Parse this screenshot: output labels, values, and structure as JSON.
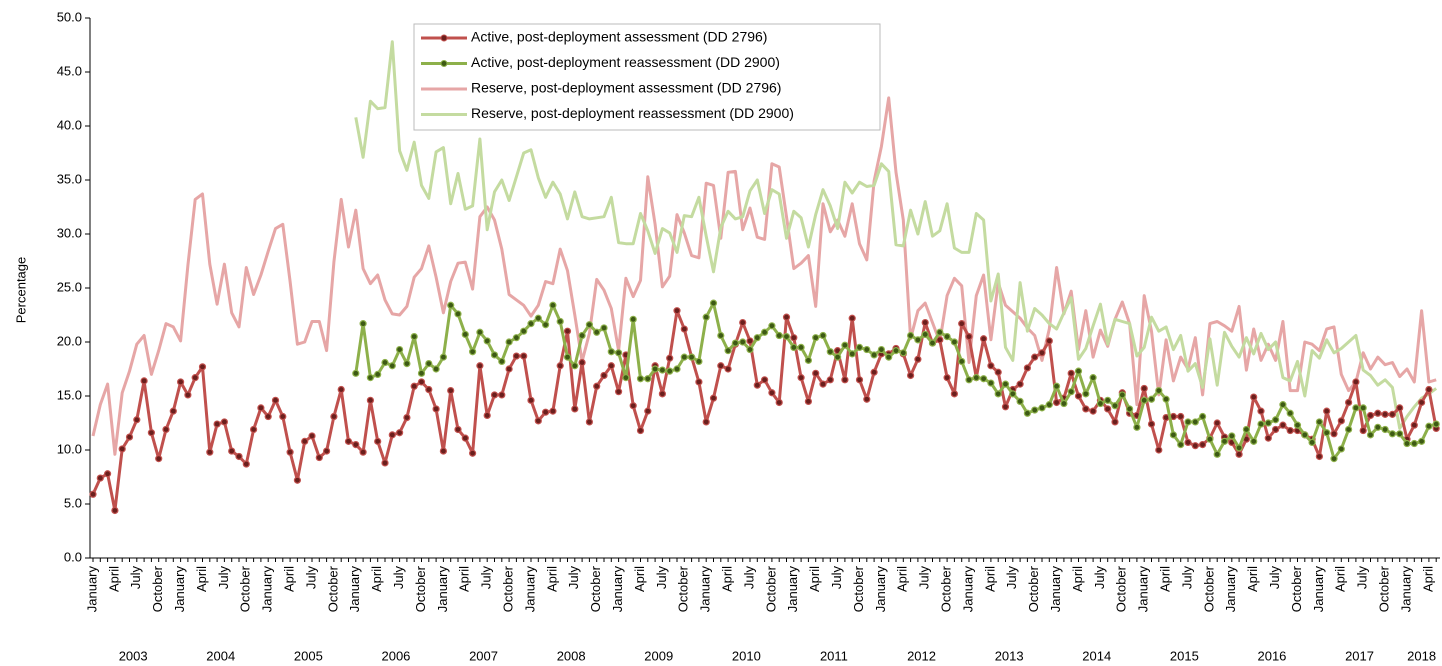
{
  "chart_data": {
    "type": "line",
    "y_axis_label": "Percentage",
    "ylim": [
      0,
      50
    ],
    "yticks": [
      {
        "value": 0,
        "label": "0.0"
      },
      {
        "value": 5,
        "label": "5.0"
      },
      {
        "value": 10,
        "label": "10.0"
      },
      {
        "value": 15,
        "label": "15.0"
      },
      {
        "value": 20,
        "label": "20.0"
      },
      {
        "value": 25,
        "label": "25.0"
      },
      {
        "value": 30,
        "label": "30.0"
      },
      {
        "value": 35,
        "label": "35.0"
      },
      {
        "value": 40,
        "label": "40.0"
      },
      {
        "value": 45,
        "label": "45.0"
      },
      {
        "value": 50,
        "label": "50.0"
      }
    ],
    "categories": [
      "January",
      null,
      null,
      "April",
      null,
      null,
      "July",
      null,
      null,
      "October",
      null,
      null,
      "January",
      null,
      null,
      "April",
      null,
      null,
      "July",
      null,
      null,
      "October",
      null,
      null,
      "January",
      null,
      null,
      "April",
      null,
      null,
      "July",
      null,
      null,
      "October",
      null,
      null,
      "January",
      null,
      null,
      "April",
      null,
      null,
      "July",
      null,
      null,
      "October",
      null,
      null,
      "January",
      null,
      null,
      "April",
      null,
      null,
      "July",
      null,
      null,
      "October",
      null,
      null,
      "January",
      null,
      null,
      "April",
      null,
      null,
      "July",
      null,
      null,
      "October",
      null,
      null,
      "January",
      null,
      null,
      "April",
      null,
      null,
      "July",
      null,
      null,
      "October",
      null,
      null,
      "January",
      null,
      null,
      "April",
      null,
      null,
      "July",
      null,
      null,
      "October",
      null,
      null,
      "January",
      null,
      null,
      "April",
      null,
      null,
      "July",
      null,
      null,
      "October",
      null,
      null,
      "January",
      null,
      null,
      "April",
      null,
      null,
      "July",
      null,
      null,
      "October",
      null,
      null,
      "January",
      null,
      null,
      "April",
      null,
      null,
      "July",
      null,
      null,
      "October",
      null,
      null,
      "January",
      null,
      null,
      "April",
      null,
      null,
      "July",
      null,
      null,
      "October",
      null,
      null,
      "January",
      null,
      null,
      "April",
      null,
      null,
      "July",
      null,
      null,
      "October",
      null,
      null,
      "January",
      null,
      null,
      "April",
      null,
      null,
      "July",
      null,
      null,
      "October",
      null,
      null,
      "January",
      null,
      null,
      "April",
      null,
      null,
      "July",
      null,
      null,
      "October",
      null,
      null,
      "January",
      null,
      null,
      "April",
      null
    ],
    "year_labels": [
      "2003",
      "2004",
      "2005",
      "2006",
      "2007",
      "2008",
      "2009",
      "2010",
      "2011",
      "2012",
      "2013",
      "2014",
      "2015",
      "2016",
      "2017",
      "2018"
    ],
    "series": [
      {
        "name": "Active, post-deployment assessment (DD 2796)",
        "color": "#c0504d",
        "marker_color": "#6b1f1d",
        "marker": true,
        "width": 3,
        "values": [
          5.9,
          7.4,
          7.8,
          4.4,
          10.1,
          11.2,
          12.8,
          16.4,
          11.6,
          9.2,
          11.9,
          13.6,
          16.3,
          15.1,
          16.7,
          17.7,
          9.8,
          12.4,
          12.6,
          9.9,
          9.4,
          8.7,
          11.9,
          13.9,
          13.1,
          14.6,
          13.1,
          9.8,
          7.2,
          10.8,
          11.3,
          9.3,
          9.9,
          13.1,
          15.6,
          10.8,
          10.5,
          9.8,
          14.6,
          10.8,
          8.8,
          11.4,
          11.6,
          13.0,
          15.9,
          16.3,
          15.6,
          13.8,
          9.9,
          15.5,
          11.9,
          11.1,
          9.7,
          17.8,
          13.2,
          15.1,
          15.1,
          17.5,
          18.7,
          18.7,
          14.6,
          12.7,
          13.5,
          13.6,
          17.8,
          21.0,
          13.8,
          18.1,
          12.6,
          15.9,
          16.9,
          17.8,
          15.4,
          18.8,
          14.1,
          11.8,
          13.6,
          17.8,
          15.2,
          18.5,
          22.9,
          21.2,
          18.6,
          16.3,
          12.6,
          14.8,
          17.8,
          17.5,
          19.8,
          21.8,
          20.1,
          16.0,
          16.5,
          15.3,
          14.4,
          22.3,
          20.4,
          16.7,
          14.5,
          17.1,
          16.1,
          16.5,
          19.2,
          16.5,
          22.2,
          16.5,
          14.7,
          17.2,
          18.9,
          18.9,
          19.4,
          18.9,
          16.9,
          18.4,
          21.8,
          19.9,
          20.2,
          16.7,
          15.2,
          21.7,
          20.5,
          16.7,
          20.3,
          17.8,
          17.2,
          14.0,
          15.6,
          16.1,
          17.6,
          18.6,
          19.0,
          20.1,
          14.4,
          14.8,
          17.1,
          15.0,
          13.8,
          13.6,
          14.6,
          13.8,
          12.6,
          15.3,
          13.4,
          13.2,
          15.7,
          12.4,
          10.0,
          13.0,
          13.1,
          13.1,
          10.7,
          10.4,
          10.5,
          11.1,
          12.5,
          11.2,
          10.7,
          9.6,
          11.0,
          14.9,
          13.6,
          11.1,
          11.9,
          12.3,
          11.8,
          11.8,
          11.4,
          11.0,
          9.4,
          13.6,
          11.5,
          12.7,
          14.4,
          16.3,
          11.8,
          13.2,
          13.4,
          13.3,
          13.3,
          13.9,
          11.0,
          12.3,
          14.4,
          15.6,
          12.0
        ]
      },
      {
        "name": "Active, post-deployment reassessment (DD 2900)",
        "color": "#8db04a",
        "marker_color": "#3d5a14",
        "marker": true,
        "width": 3,
        "values": [
          null,
          null,
          null,
          null,
          null,
          null,
          null,
          null,
          null,
          null,
          null,
          null,
          null,
          null,
          null,
          null,
          null,
          null,
          null,
          null,
          null,
          null,
          null,
          null,
          null,
          null,
          null,
          null,
          null,
          null,
          null,
          null,
          null,
          null,
          null,
          null,
          17.1,
          21.7,
          16.7,
          17.0,
          18.1,
          17.8,
          19.3,
          18.0,
          20.5,
          17.1,
          18.0,
          17.5,
          18.6,
          23.4,
          22.6,
          20.7,
          19.1,
          20.9,
          20.1,
          18.8,
          18.2,
          20.0,
          20.4,
          21.0,
          21.7,
          22.2,
          21.6,
          23.4,
          21.9,
          18.6,
          17.8,
          20.6,
          21.6,
          20.9,
          21.3,
          19.1,
          19.0,
          16.7,
          22.1,
          16.6,
          16.6,
          17.5,
          17.4,
          17.3,
          17.5,
          18.6,
          18.6,
          18.2,
          22.3,
          23.6,
          20.6,
          19.2,
          19.9,
          20.0,
          19.3,
          20.4,
          20.9,
          21.5,
          20.6,
          20.5,
          19.5,
          19.5,
          18.3,
          20.4,
          20.6,
          19.1,
          18.6,
          19.7,
          18.9,
          19.5,
          19.3,
          18.8,
          19.3,
          18.6,
          19.2,
          19.0,
          20.6,
          20.2,
          20.7,
          19.9,
          20.9,
          20.5,
          20.0,
          18.2,
          16.5,
          16.7,
          16.6,
          16.2,
          15.2,
          16.1,
          15.2,
          14.5,
          13.4,
          13.7,
          13.9,
          14.2,
          15.9,
          14.3,
          15.4,
          17.3,
          15.2,
          16.7,
          14.3,
          14.6,
          14.1,
          15.1,
          13.8,
          12.1,
          14.6,
          14.7,
          15.5,
          14.7,
          11.4,
          10.5,
          12.6,
          12.6,
          13.1,
          11.0,
          9.6,
          10.8,
          11.3,
          10.2,
          11.9,
          10.8,
          12.4,
          12.5,
          12.8,
          14.2,
          13.4,
          12.3,
          11.4,
          10.7,
          12.6,
          11.6,
          9.2,
          10.1,
          11.9,
          13.9,
          13.9,
          11.4,
          12.1,
          11.9,
          11.5,
          11.5,
          10.6,
          10.6,
          10.8,
          12.2,
          12.4
        ]
      },
      {
        "name": "Reserve, post-deployment assessment (DD 2796)",
        "color": "#e6a6a6",
        "marker": false,
        "width": 3,
        "values": [
          11.3,
          14.2,
          16.1,
          9.6,
          15.3,
          17.3,
          19.8,
          20.6,
          17.0,
          19.2,
          21.7,
          21.4,
          20.1,
          27.1,
          33.2,
          33.7,
          27.2,
          23.5,
          27.2,
          22.7,
          21.4,
          26.9,
          24.4,
          26.2,
          28.4,
          30.5,
          30.9,
          25.6,
          19.8,
          20.0,
          21.9,
          21.9,
          19.2,
          27.4,
          33.2,
          28.8,
          32.2,
          26.8,
          25.4,
          26.2,
          23.9,
          22.6,
          22.5,
          23.3,
          26.0,
          26.8,
          28.9,
          26.0,
          22.7,
          25.6,
          27.3,
          27.4,
          24.9,
          31.6,
          32.5,
          31.3,
          28.6,
          24.4,
          23.9,
          23.4,
          22.4,
          23.4,
          25.6,
          25.4,
          28.6,
          26.6,
          22.5,
          18.2,
          20.8,
          25.8,
          24.8,
          23.1,
          19.2,
          25.9,
          24.2,
          25.7,
          35.3,
          30.9,
          25.1,
          26.1,
          31.8,
          30.1,
          28.0,
          27.8,
          34.7,
          34.5,
          29.6,
          35.7,
          35.8,
          30.4,
          32.4,
          29.7,
          29.5,
          36.5,
          36.2,
          31.6,
          26.8,
          27.3,
          28.0,
          23.3,
          32.8,
          30.2,
          31.3,
          29.8,
          32.8,
          29.1,
          27.6,
          34.9,
          38.1,
          42.6,
          35.7,
          31.3,
          20.3,
          22.9,
          23.6,
          21.8,
          20.0,
          24.3,
          25.9,
          25.2,
          18.1,
          24.3,
          26.2,
          20.2,
          25.5,
          23.4,
          22.8,
          22.2,
          21.3,
          20.6,
          18.3,
          21.2,
          26.9,
          22.6,
          24.7,
          19.3,
          22.9,
          18.6,
          21.1,
          19.6,
          22.1,
          23.7,
          21.7,
          14.2,
          24.3,
          21.0,
          15.1,
          20.2,
          16.4,
          18.6,
          17.5,
          20.4,
          15.1,
          21.7,
          21.9,
          21.5,
          21.0,
          23.3,
          17.4,
          21.2,
          18.3,
          19.8,
          18.3,
          21.9,
          15.5,
          15.5,
          20.0,
          19.8,
          19.2,
          21.2,
          21.4,
          17.0,
          15.5,
          16.3,
          19.0,
          17.5,
          18.6,
          17.9,
          18.1,
          16.8,
          17.5,
          16.3,
          22.9,
          16.3,
          16.5
        ]
      },
      {
        "name": "Reserve, post-deployment reassessment (DD 2900)",
        "color": "#c4dba0",
        "marker": false,
        "width": 3,
        "values": [
          null,
          null,
          null,
          null,
          null,
          null,
          null,
          null,
          null,
          null,
          null,
          null,
          null,
          null,
          null,
          null,
          null,
          null,
          null,
          null,
          null,
          null,
          null,
          null,
          null,
          null,
          null,
          null,
          null,
          null,
          null,
          null,
          null,
          null,
          null,
          null,
          40.8,
          37.1,
          42.3,
          41.6,
          41.7,
          47.8,
          37.7,
          35.9,
          38.5,
          34.5,
          33.3,
          37.6,
          38.0,
          32.8,
          35.6,
          32.3,
          32.6,
          38.8,
          30.4,
          33.9,
          35.0,
          33.1,
          35.3,
          37.5,
          37.8,
          35.2,
          33.4,
          34.8,
          33.7,
          31.4,
          33.9,
          31.6,
          31.4,
          31.5,
          31.6,
          33.4,
          29.2,
          29.1,
          29.1,
          31.9,
          30.3,
          28.2,
          30.5,
          30.1,
          28.3,
          31.7,
          31.6,
          33.4,
          29.8,
          26.5,
          30.6,
          32.1,
          31.4,
          31.6,
          34.0,
          35.0,
          31.9,
          34.1,
          33.7,
          29.6,
          32.1,
          31.5,
          28.8,
          31.8,
          34.1,
          32.6,
          30.5,
          34.8,
          33.8,
          34.8,
          34.4,
          34.5,
          36.5,
          35.8,
          29.0,
          28.9,
          32.2,
          30.0,
          33.0,
          29.8,
          30.3,
          32.8,
          28.7,
          28.3,
          28.3,
          31.9,
          31.3,
          23.8,
          26.3,
          19.5,
          18.3,
          25.5,
          21.0,
          23.1,
          22.5,
          21.7,
          21.2,
          22.7,
          24.1,
          18.4,
          19.4,
          21.5,
          23.5,
          19.8,
          22.1,
          21.9,
          21.7,
          18.7,
          19.5,
          22.3,
          21.0,
          21.4,
          19.3,
          20.6,
          17.3,
          18.0,
          15.8,
          20.3,
          16.0,
          20.9,
          19.6,
          18.6,
          20.4,
          18.9,
          20.8,
          19.3,
          20.0,
          16.7,
          16.4,
          18.2,
          15.0,
          19.2,
          18.5,
          20.2,
          19.0,
          19.4,
          20.0,
          20.6,
          17.4,
          16.9,
          16.0,
          16.5,
          15.8,
          12.0,
          13.1,
          14.0,
          14.8,
          15.2,
          15.7
        ]
      }
    ]
  }
}
